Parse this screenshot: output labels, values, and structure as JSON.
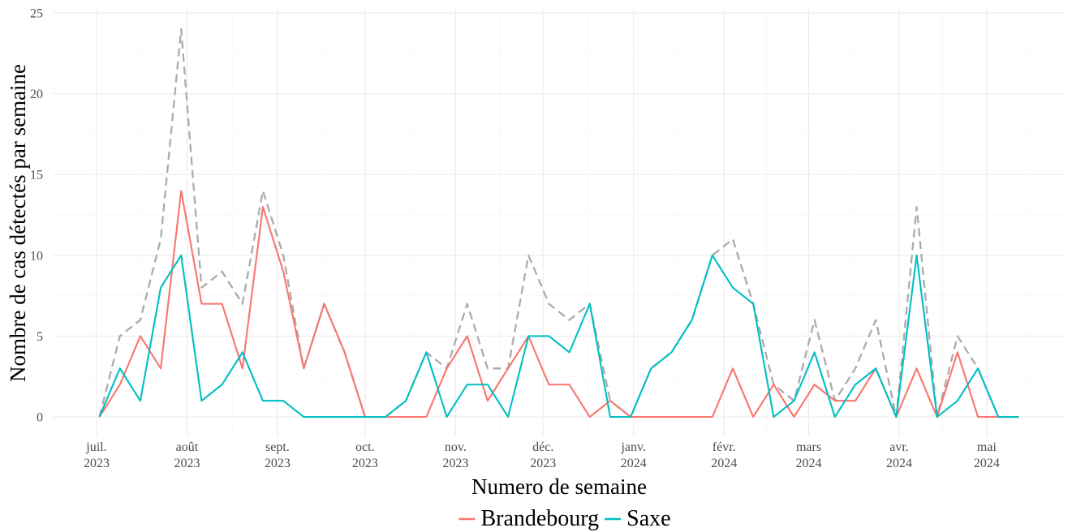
{
  "chart_data": {
    "type": "line",
    "xlabel": "Numero de semaine",
    "ylabel": "Nombre de cas détectés par semaine",
    "x": [
      "2023-07-02",
      "2023-07-09",
      "2023-07-16",
      "2023-07-23",
      "2023-07-30",
      "2023-08-06",
      "2023-08-13",
      "2023-08-20",
      "2023-08-27",
      "2023-09-03",
      "2023-09-10",
      "2023-09-17",
      "2023-09-24",
      "2023-10-01",
      "2023-10-08",
      "2023-10-15",
      "2023-10-22",
      "2023-10-29",
      "2023-11-05",
      "2023-11-12",
      "2023-11-19",
      "2023-11-26",
      "2023-12-03",
      "2023-12-10",
      "2023-12-17",
      "2023-12-24",
      "2023-12-31",
      "2024-01-07",
      "2024-01-14",
      "2024-01-21",
      "2024-01-28",
      "2024-02-04",
      "2024-02-11",
      "2024-02-18",
      "2024-02-25",
      "2024-03-03",
      "2024-03-10",
      "2024-03-17",
      "2024-03-24",
      "2024-03-31",
      "2024-04-07",
      "2024-04-14",
      "2024-04-21",
      "2024-04-28",
      "2024-05-05",
      "2024-05-12"
    ],
    "series": [
      {
        "name": "Brandebourg",
        "color": "#F8766D",
        "line_style": "solid",
        "values": [
          0,
          2,
          5,
          3,
          14,
          7,
          7,
          3,
          13,
          9,
          3,
          7,
          4,
          0,
          0,
          0,
          0,
          3,
          5,
          1,
          3,
          5,
          2,
          2,
          0,
          1,
          0,
          0,
          0,
          0,
          0,
          3,
          0,
          2,
          0,
          2,
          1,
          1,
          3,
          0,
          3,
          0,
          4,
          0,
          0,
          0
        ]
      },
      {
        "name": "Saxe",
        "color": "#00BFC4",
        "line_style": "solid",
        "values": [
          0,
          3,
          1,
          8,
          10,
          1,
          2,
          4,
          1,
          1,
          0,
          0,
          0,
          0,
          0,
          1,
          4,
          0,
          2,
          2,
          0,
          5,
          5,
          4,
          7,
          0,
          0,
          3,
          4,
          6,
          10,
          8,
          7,
          0,
          1,
          4,
          0,
          2,
          3,
          0,
          10,
          0,
          1,
          3,
          0,
          0
        ]
      },
      {
        "color": "#ABABAB",
        "line_style": "dashed",
        "values": [
          0,
          5,
          6,
          11,
          24,
          8,
          9,
          7,
          14,
          10,
          3,
          7,
          4,
          0,
          0,
          1,
          4,
          3,
          7,
          3,
          3,
          10,
          7,
          6,
          7,
          1,
          0,
          3,
          4,
          6,
          10,
          11,
          7,
          2,
          1,
          6,
          1,
          3,
          6,
          0,
          13,
          0,
          5,
          3,
          0,
          0
        ]
      }
    ],
    "xlim": [
      "2023-06-16",
      "2024-05-28"
    ],
    "ylim": [
      -1.2,
      25.2
    ],
    "y_ticks": [
      0,
      5,
      10,
      15,
      20,
      25
    ],
    "x_ticks": [
      {
        "date": "2023-07-01",
        "month": "juil.",
        "year": "2023"
      },
      {
        "date": "2023-08-01",
        "month": "août",
        "year": "2023"
      },
      {
        "date": "2023-09-01",
        "month": "sept.",
        "year": "2023"
      },
      {
        "date": "2023-10-01",
        "month": "oct.",
        "year": "2023"
      },
      {
        "date": "2023-11-01",
        "month": "nov.",
        "year": "2023"
      },
      {
        "date": "2023-12-01",
        "month": "déc.",
        "year": "2023"
      },
      {
        "date": "2024-01-01",
        "month": "janv.",
        "year": "2024"
      },
      {
        "date": "2024-02-01",
        "month": "févr.",
        "year": "2024"
      },
      {
        "date": "2024-03-01",
        "month": "mars",
        "year": "2024"
      },
      {
        "date": "2024-04-01",
        "month": "avr.",
        "year": "2024"
      },
      {
        "date": "2024-05-01",
        "month": "mai",
        "year": "2024"
      }
    ],
    "grid": true,
    "legend": {
      "position": "bottom"
    }
  }
}
